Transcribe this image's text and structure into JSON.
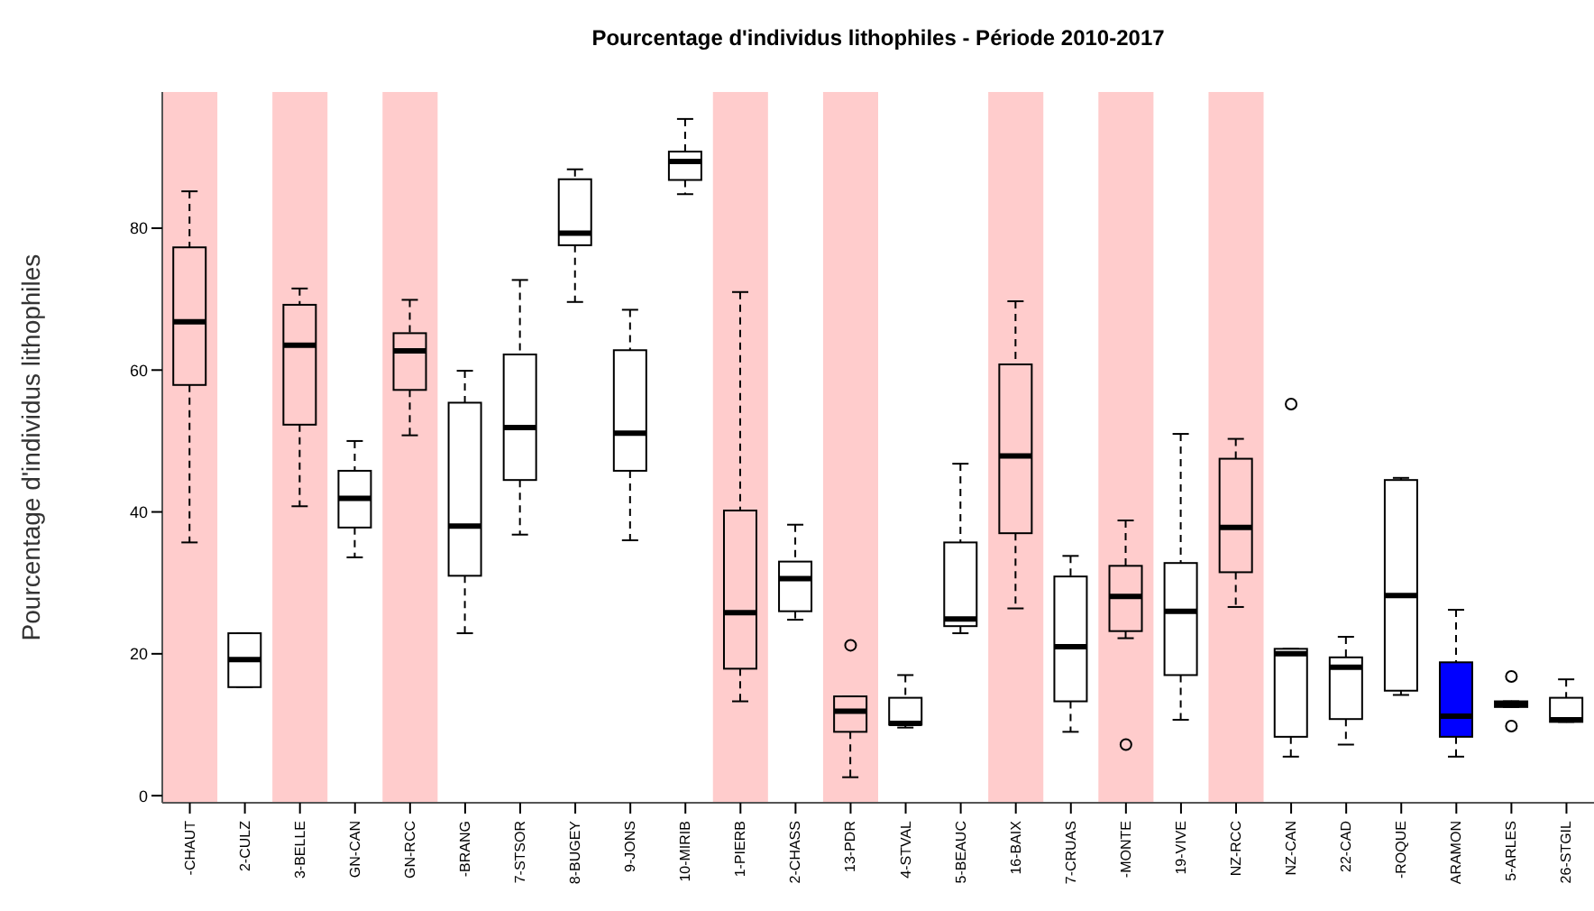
{
  "chart_data": {
    "type": "box",
    "title": "Pourcentage d'individus lithophiles - Période 2010-2017",
    "ylabel": "Pourcentage d'individus lithophiles",
    "categories": [
      "-CHAUT",
      "2-CULZ",
      "3-BELLE",
      "GN-CAN",
      "GN-RCC",
      "-BRANG",
      "7-STSOR",
      "8-BUGEY",
      "9-JONS",
      "10-MIRIB",
      "1-PIERB",
      "2-CHASS",
      "13-PDR",
      "4-STVAL",
      "5-BEAUC",
      "16-BAIX",
      "7-CRUAS",
      "-MONTE",
      "19-VIVE",
      "NZ-RCC",
      "NZ-CAN",
      "22-CAD",
      "-ROQUE",
      "ARAMON",
      "5-ARLES",
      "26-STGIL"
    ],
    "boxes": [
      {
        "low": 35.7,
        "q1": 57.9,
        "median": 66.8,
        "q3": 77.3,
        "high": 85.2
      },
      {
        "low": 15.3,
        "q1": 15.3,
        "median": 19.2,
        "q3": 22.9,
        "high": 22.9
      },
      {
        "low": 40.8,
        "q1": 52.3,
        "median": 63.5,
        "q3": 69.2,
        "high": 71.5
      },
      {
        "low": 33.6,
        "q1": 37.8,
        "median": 41.9,
        "q3": 45.8,
        "high": 50
      },
      {
        "low": 50.8,
        "q1": 57.2,
        "median": 62.7,
        "q3": 65.2,
        "high": 69.9
      },
      {
        "low": 22.9,
        "q1": 31,
        "median": 38,
        "q3": 55.4,
        "high": 59.9
      },
      {
        "low": 36.8,
        "q1": 44.5,
        "median": 51.9,
        "q3": 62.2,
        "high": 72.7
      },
      {
        "low": 69.6,
        "q1": 77.6,
        "median": 79.3,
        "q3": 86.9,
        "high": 88.3
      },
      {
        "low": 36,
        "q1": 45.8,
        "median": 51.1,
        "q3": 62.8,
        "high": 68.5
      },
      {
        "low": 84.8,
        "q1": 86.8,
        "median": 89.4,
        "q3": 90.8,
        "high": 95.4
      },
      {
        "low": 13.3,
        "q1": 17.9,
        "median": 25.8,
        "q3": 40.2,
        "high": 71
      },
      {
        "low": 24.8,
        "q1": 26,
        "median": 30.6,
        "q3": 33,
        "high": 38.2
      },
      {
        "low": 2.6,
        "q1": 9,
        "median": 11.9,
        "q3": 14,
        "high": 14,
        "outliers": [
          21.2
        ]
      },
      {
        "low": 9.6,
        "q1": 10,
        "median": 10.2,
        "q3": 13.8,
        "high": 17
      },
      {
        "low": 22.9,
        "q1": 23.9,
        "median": 24.9,
        "q3": 35.7,
        "high": 46.8
      },
      {
        "low": 26.4,
        "q1": 37,
        "median": 47.9,
        "q3": 60.8,
        "high": 69.7
      },
      {
        "low": 9,
        "q1": 13.3,
        "median": 21,
        "q3": 30.9,
        "high": 33.8
      },
      {
        "low": 22.2,
        "q1": 23.2,
        "median": 28.1,
        "q3": 32.4,
        "high": 38.8,
        "outliers": [
          7.2
        ]
      },
      {
        "low": 10.7,
        "q1": 17,
        "median": 26,
        "q3": 32.8,
        "high": 51
      },
      {
        "low": 26.6,
        "q1": 31.5,
        "median": 37.8,
        "q3": 47.5,
        "high": 50.3
      },
      {
        "low": 5.5,
        "q1": 8.3,
        "median": 20,
        "q3": 20.7,
        "high": 20.7,
        "outliers": [
          55.2
        ]
      },
      {
        "low": 7.2,
        "q1": 10.8,
        "median": 18.1,
        "q3": 19.5,
        "high": 22.4
      },
      {
        "low": 14.2,
        "q1": 14.8,
        "median": 28.2,
        "q3": 44.5,
        "high": 44.8
      },
      {
        "low": 5.5,
        "q1": 8.3,
        "median": 11.2,
        "q3": 18.8,
        "high": 26.2
      },
      {
        "low": 12.5,
        "q1": 12.5,
        "median": 12.9,
        "q3": 13.3,
        "high": 13.3,
        "outliers": [
          16.8,
          9.8
        ]
      },
      {
        "low": 10.4,
        "q1": 10.4,
        "median": 10.7,
        "q3": 13.8,
        "high": 16.4
      }
    ],
    "colors": [
      "#ffcccc",
      "#ffffff",
      "#ffcccc",
      "#ffffff",
      "#ffcccc",
      "#ffffff",
      "#ffffff",
      "#ffffff",
      "#ffffff",
      "#ffffff",
      "#ffcccc",
      "#ffffff",
      "#ffcccc",
      "#ffffff",
      "#ffffff",
      "#ffcccc",
      "#ffffff",
      "#ffcccc",
      "#ffffff",
      "#ffcccc",
      "#ffffff",
      "#ffffff",
      "#ffffff",
      "#0000ff",
      "#ffffff",
      "#ffffff"
    ],
    "bands": [
      {
        "axis": "x",
        "from": "-CHAUT",
        "to": "-CHAUT",
        "color": "#ffcccc"
      },
      {
        "axis": "x",
        "from": "3-BELLE",
        "to": "3-BELLE",
        "color": "#ffcccc"
      },
      {
        "axis": "x",
        "from": "GN-RCC",
        "to": "GN-RCC",
        "color": "#ffcccc"
      },
      {
        "axis": "x",
        "from": "1-PIERB",
        "to": "1-PIERB",
        "color": "#ffcccc"
      },
      {
        "axis": "x",
        "from": "13-PDR",
        "to": "13-PDR",
        "color": "#ffcccc"
      },
      {
        "axis": "x",
        "from": "16-BAIX",
        "to": "16-BAIX",
        "color": "#ffcccc"
      },
      {
        "axis": "x",
        "from": "-MONTE",
        "to": "-MONTE",
        "color": "#ffcccc"
      },
      {
        "axis": "x",
        "from": "NZ-RCC",
        "to": "NZ-RCC",
        "color": "#ffcccc"
      }
    ],
    "ylim": [
      -1,
      99.2
    ],
    "yticks": [
      0,
      20,
      40,
      60,
      80
    ]
  }
}
